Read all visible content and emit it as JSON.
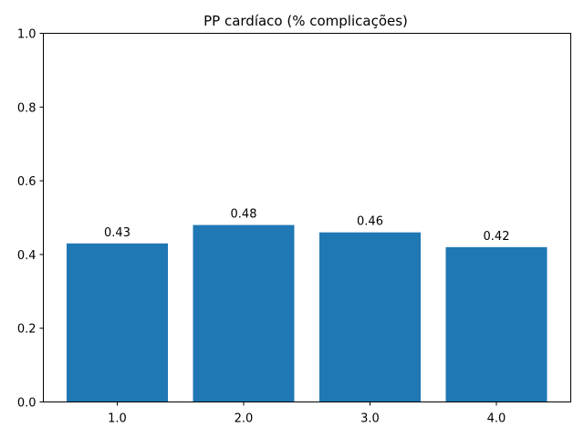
{
  "chart_data": {
    "type": "bar",
    "title": "PP cardíaco (% complicações)",
    "xlabel": "",
    "ylabel": "",
    "categories": [
      "1.0",
      "2.0",
      "3.0",
      "4.0"
    ],
    "values": [
      0.43,
      0.48,
      0.46,
      0.42
    ],
    "data_labels": [
      "0.43",
      "0.48",
      "0.46",
      "0.42"
    ],
    "ylim": [
      0,
      1.0
    ],
    "yticks": [
      "0.0",
      "0.2",
      "0.4",
      "0.6",
      "0.8",
      "1.0"
    ],
    "ytick_values": [
      0,
      0.2,
      0.4,
      0.6,
      0.8,
      1.0
    ],
    "bar_color": "#1f77b4",
    "grid": false,
    "legend": "none"
  }
}
